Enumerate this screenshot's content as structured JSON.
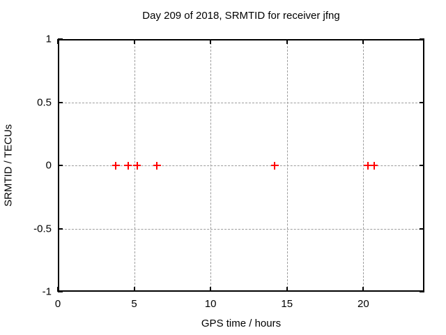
{
  "page": {
    "background": "#ffffff"
  },
  "chart_data": {
    "type": "scatter",
    "title": "Day 209 of 2018, SRMTID for receiver jfng",
    "xlabel": "GPS time / hours",
    "ylabel": "SRMTID / TECUs",
    "xlim": [
      0,
      24
    ],
    "ylim": [
      -1,
      1
    ],
    "xticks": [
      {
        "value": 0,
        "label": "0"
      },
      {
        "value": 5,
        "label": "5"
      },
      {
        "value": 10,
        "label": "10"
      },
      {
        "value": 15,
        "label": "15"
      },
      {
        "value": 20,
        "label": "20"
      }
    ],
    "yticks": [
      {
        "value": -1,
        "label": "-1"
      },
      {
        "value": -0.5,
        "label": "-0.5"
      },
      {
        "value": 0,
        "label": "0"
      },
      {
        "value": 0.5,
        "label": "0.5"
      },
      {
        "value": 1,
        "label": "1"
      }
    ],
    "grid": true,
    "legend_position": "none",
    "colors": {
      "marker": "#ff0000",
      "grid": "#9c9c9c",
      "axis": "#000000",
      "background": "#ffffff"
    },
    "series": [
      {
        "name": "SRMTID",
        "marker": "plus",
        "color": "#ff0000",
        "points": [
          {
            "x": 3.8,
            "y": 0
          },
          {
            "x": 4.6,
            "y": 0
          },
          {
            "x": 5.2,
            "y": 0
          },
          {
            "x": 6.5,
            "y": 0
          },
          {
            "x": 14.2,
            "y": 0
          },
          {
            "x": 20.3,
            "y": 0
          },
          {
            "x": 20.7,
            "y": 0
          }
        ]
      }
    ]
  }
}
